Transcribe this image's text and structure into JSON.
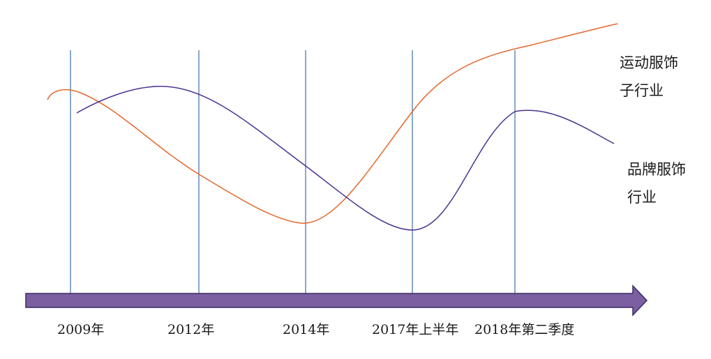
{
  "chart_data": {
    "type": "line",
    "title": "",
    "xlabel": "",
    "ylabel": "",
    "categories": [
      "2009年",
      "2012年",
      "2014年",
      "2017年上半年",
      "2018年第二季度"
    ],
    "grid": "vertical lines at each category",
    "axis": "horizontal arrow (timeline)",
    "series": [
      {
        "name": "运动服饰子行业",
        "label_lines": [
          "运动服饰",
          "子行业"
        ],
        "color": "#e4672c",
        "trend": [
          0.74,
          0.55,
          0.3,
          0.8,
          0.98
        ]
      },
      {
        "name": "品牌服饰行业",
        "label_lines": [
          "品牌服饰",
          "行业"
        ],
        "color": "#4b3393",
        "trend": [
          0.7,
          0.8,
          0.5,
          0.27,
          0.8
        ]
      }
    ],
    "colors": {
      "axis_arrow_fill": "#7b5fa0",
      "axis_arrow_stroke": "#3b2a66",
      "gridline": "#3d6fa8"
    }
  }
}
